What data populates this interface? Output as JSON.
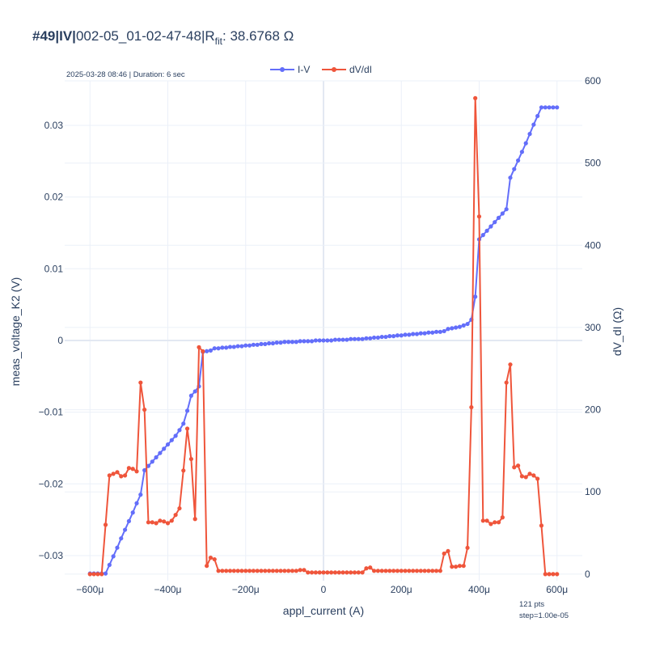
{
  "title": {
    "bold": "#49|IV|",
    "main": "002-05_01-02-47-48|R",
    "sub": "fit",
    "value": ": 38.6768 Ω"
  },
  "info_line": "2025-03-28 08:46 | Duration: 6 sec",
  "footer_note": [
    "121 pts",
    "step=1.00e-05"
  ],
  "colors": {
    "iv": "#636efa",
    "dvdi": "#ef553b",
    "grid": "#ebf0f8",
    "zeroline": "#e3e8f2",
    "text": "#2a3f5f"
  },
  "chart_data": {
    "type": "line",
    "legend_placement": "top-center",
    "grid": true,
    "xlabel": "appl_current (A)",
    "ylabel": "meas_voltage_K2 (V)",
    "y2label": "dV_dI (Ω)",
    "xlim": [
      -0.000665,
      0.000665
    ],
    "ylim": [
      -0.0335,
      0.0362
    ],
    "y2lim": [
      -8,
      600
    ],
    "x_ticks": [
      -0.0006,
      -0.0004,
      -0.0002,
      0,
      0.0002,
      0.0004,
      0.0006
    ],
    "x_tick_labels": [
      "−600μ",
      "−400μ",
      "−200μ",
      "0",
      "200μ",
      "400μ",
      "600μ"
    ],
    "y_ticks": [
      -0.03,
      -0.02,
      -0.01,
      0,
      0.01,
      0.02,
      0.03
    ],
    "y_tick_labels": [
      "−0.03",
      "−0.02",
      "−0.01",
      "0",
      "0.01",
      "0.02",
      "0.03"
    ],
    "y2_ticks": [
      0,
      100,
      200,
      300,
      400,
      500,
      600
    ],
    "y2_tick_labels": [
      "0",
      "100",
      "200",
      "300",
      "400",
      "500",
      "600"
    ],
    "x": [
      -0.0006,
      -0.00059,
      -0.00058,
      -0.00057,
      -0.00056,
      -0.00055,
      -0.00054,
      -0.00053,
      -0.00052,
      -0.00051,
      -0.0005,
      -0.00049,
      -0.00048,
      -0.00047,
      -0.00046,
      -0.00045,
      -0.00044,
      -0.00043,
      -0.00042,
      -0.00041,
      -0.0004,
      -0.00039,
      -0.00038,
      -0.00037,
      -0.00036,
      -0.00035,
      -0.00034,
      -0.00033,
      -0.00032,
      -0.00031,
      -0.0003,
      -0.00029,
      -0.00028,
      -0.00027,
      -0.00026,
      -0.00025,
      -0.00024,
      -0.00023,
      -0.00022,
      -0.00021,
      -0.0002,
      -0.00019,
      -0.00018,
      -0.00017,
      -0.00016,
      -0.00015,
      -0.00014,
      -0.00013,
      -0.00012,
      -0.00011,
      -0.0001,
      -9e-05,
      -8e-05,
      -7e-05,
      -6e-05,
      -5e-05,
      -4e-05,
      -3e-05,
      -2e-05,
      -1e-05,
      0,
      1e-05,
      2e-05,
      3e-05,
      4e-05,
      5e-05,
      6e-05,
      7e-05,
      8e-05,
      9e-05,
      0.0001,
      0.00011,
      0.00012,
      0.00013,
      0.00014,
      0.00015,
      0.00016,
      0.00017,
      0.00018,
      0.00019,
      0.0002,
      0.00021,
      0.00022,
      0.00023,
      0.00024,
      0.00025,
      0.00026,
      0.00027,
      0.00028,
      0.00029,
      0.0003,
      0.00031,
      0.00032,
      0.00033,
      0.00034,
      0.00035,
      0.00036,
      0.00037,
      0.00038,
      0.00039,
      0.0004,
      0.00041,
      0.00042,
      0.00043,
      0.00044,
      0.00045,
      0.00046,
      0.00047,
      0.00048,
      0.00049,
      0.0005,
      0.00051,
      0.00052,
      0.00053,
      0.00054,
      0.00055,
      0.00056,
      0.00057,
      0.00058,
      0.00059,
      0.0006
    ],
    "series": [
      {
        "name": "I-V",
        "axis": "y",
        "values": [
          -0.0325,
          -0.0325,
          -0.0325,
          -0.0325,
          -0.0325,
          -0.0313,
          -0.0301,
          -0.0289,
          -0.0276,
          -0.0264,
          -0.0252,
          -0.024,
          -0.0227,
          -0.0215,
          -0.0181,
          -0.0175,
          -0.0169,
          -0.0163,
          -0.0157,
          -0.0151,
          -0.0145,
          -0.0139,
          -0.0133,
          -0.0125,
          -0.0116,
          -0.0098,
          -0.0077,
          -0.0071,
          -0.0064,
          -0.0016,
          -0.0015,
          -0.0014,
          -0.0011,
          -0.0011,
          -0.001,
          -0.001,
          -0.0009,
          -0.0009,
          -0.0008,
          -0.0008,
          -0.0007,
          -0.0007,
          -0.0006,
          -0.0006,
          -0.0005,
          -0.0005,
          -0.0004,
          -0.0004,
          -0.0003,
          -0.0003,
          -0.0002,
          -0.0002,
          -0.0002,
          -0.0002,
          -0.0001,
          -0.0001,
          -0.0001,
          -0.0001,
          0,
          0,
          0,
          0,
          0,
          0.0001,
          0.0001,
          0.0001,
          0.0001,
          0.0002,
          0.0002,
          0.0002,
          0.0002,
          0.0003,
          0.0003,
          0.0004,
          0.0004,
          0.0005,
          0.0005,
          0.0006,
          0.0006,
          0.0007,
          0.0007,
          0.0008,
          0.0008,
          0.0009,
          0.0009,
          0.001,
          0.001,
          0.0011,
          0.0011,
          0.0012,
          0.0012,
          0.0013,
          0.0016,
          0.0017,
          0.0018,
          0.0019,
          0.0021,
          0.0023,
          0.0029,
          0.0061,
          0.0141,
          0.0147,
          0.0153,
          0.0159,
          0.0165,
          0.0171,
          0.0177,
          0.0183,
          0.0227,
          0.0239,
          0.0251,
          0.0263,
          0.0275,
          0.0288,
          0.0301,
          0.0313,
          0.0325,
          0.0325,
          0.0325,
          0.0325,
          0.0325
        ]
      },
      {
        "name": "dV/dI",
        "axis": "y2",
        "values": [
          0,
          0,
          0,
          0,
          60,
          120,
          122,
          124,
          119,
          120,
          129,
          128,
          125,
          233,
          200,
          63,
          63,
          62,
          65,
          64,
          62,
          65,
          72,
          80,
          126,
          177,
          140,
          67,
          276,
          271,
          10,
          20,
          18,
          4,
          4,
          4,
          4,
          4,
          4,
          4,
          4,
          4,
          4,
          4,
          4,
          4,
          4,
          4,
          4,
          4,
          4,
          4,
          4,
          4,
          5,
          5,
          2,
          2,
          2,
          2,
          2,
          2,
          2,
          2,
          2,
          2,
          2,
          2,
          2,
          2,
          2,
          7,
          8,
          4,
          4,
          4,
          4,
          4,
          4,
          4,
          4,
          4,
          4,
          4,
          4,
          4,
          4,
          4,
          4,
          4,
          4,
          25,
          28,
          9,
          9,
          10,
          10,
          32,
          203,
          579,
          435,
          65,
          65,
          61,
          63,
          63,
          69,
          233,
          255,
          130,
          132,
          119,
          118,
          122,
          120,
          116,
          59,
          0,
          0,
          0,
          0
        ]
      }
    ]
  }
}
